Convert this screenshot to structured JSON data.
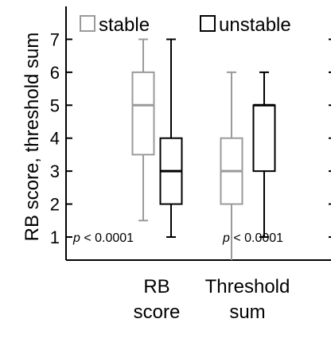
{
  "chart_data": {
    "type": "box",
    "ylabel": "RB score, threshold sum",
    "ylim": [
      0.3,
      8
    ],
    "yticks": [
      1,
      2,
      3,
      4,
      5,
      6,
      7
    ],
    "categories": [
      {
        "lines": [
          "RB",
          "score"
        ]
      },
      {
        "lines": [
          "Threshold",
          "sum"
        ]
      }
    ],
    "legend": {
      "placement": "top",
      "entries": [
        "stable",
        "unstable"
      ]
    },
    "colors": {
      "stable": "#9a9a9a",
      "unstable": "#000000"
    },
    "series": [
      {
        "name": "stable",
        "boxes": [
          {
            "category": 0,
            "whisker_low": 1.5,
            "q1": 3.5,
            "median": 5,
            "q3": 6,
            "whisker_high": 7
          },
          {
            "category": 1,
            "whisker_low": 0.3,
            "q1": 2,
            "median": 3,
            "q3": 4,
            "whisker_high": 6
          }
        ]
      },
      {
        "name": "unstable",
        "boxes": [
          {
            "category": 0,
            "whisker_low": 1,
            "q1": 2,
            "median": 3,
            "q3": 4,
            "whisker_high": 7
          },
          {
            "category": 1,
            "whisker_low": 1,
            "q1": 3,
            "median": 5,
            "q3": 5,
            "whisker_high": 6
          }
        ]
      }
    ],
    "annotations": [
      {
        "category": 0,
        "p_symbol": "p",
        "text": " < 0.0001"
      },
      {
        "category": 1,
        "p_symbol": "p",
        "text": " < 0.0001"
      }
    ]
  }
}
